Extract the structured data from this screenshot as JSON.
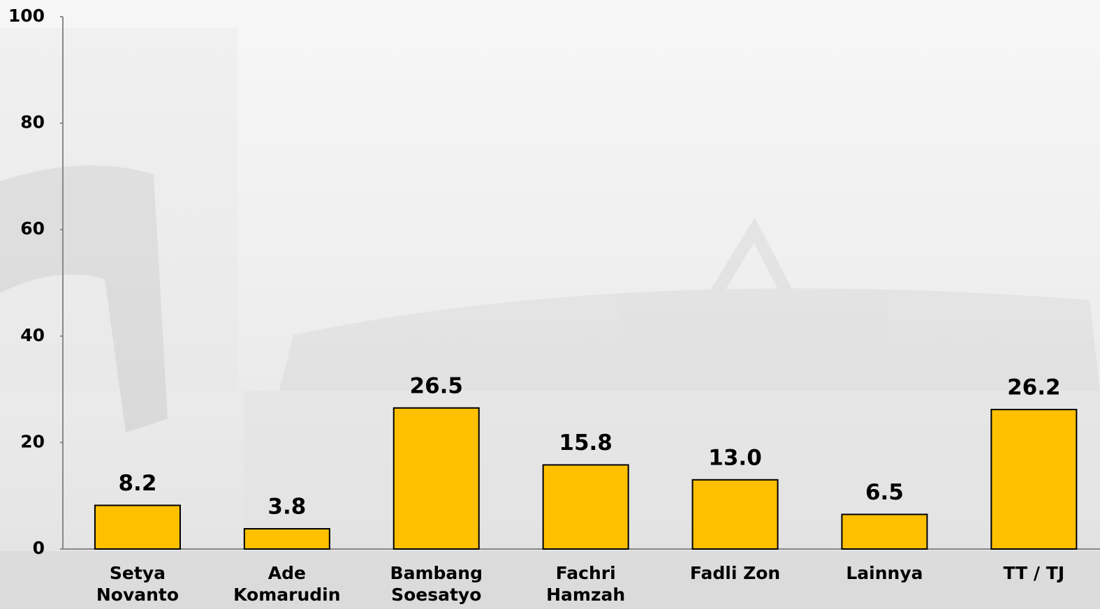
{
  "chart_data": {
    "type": "bar",
    "categories": [
      "Setya\nNovanto",
      "Ade\nKomarudin",
      "Bambang\nSoesatyo",
      "Fachri\nHamzah",
      "Fadli Zon",
      "Lainnya",
      "TT / TJ"
    ],
    "values": [
      8.2,
      3.8,
      26.5,
      15.8,
      13.0,
      6.5,
      26.2
    ],
    "value_labels": [
      "8.2",
      "3.8",
      "26.5",
      "15.8",
      "13.0",
      "6.5",
      "26.2"
    ],
    "color": "#ffc000",
    "ylim": [
      0,
      100
    ],
    "yticks": [
      0,
      20,
      40,
      60,
      80,
      100
    ],
    "grid": false
  }
}
